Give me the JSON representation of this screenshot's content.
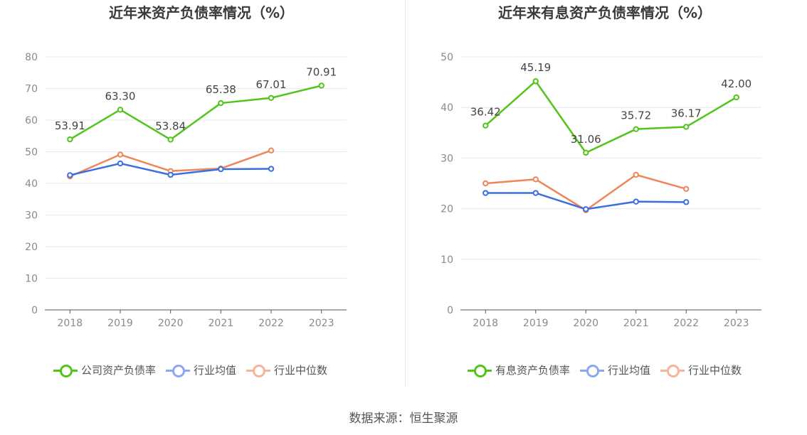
{
  "chart_data": [
    {
      "type": "line",
      "title": "近年来资产负债率情况（%）",
      "categories": [
        "2018",
        "2019",
        "2020",
        "2021",
        "2022",
        "2023"
      ],
      "ylim": [
        0,
        80
      ],
      "yticks": [
        0,
        10,
        20,
        30,
        40,
        50,
        60,
        70,
        80
      ],
      "grid": true,
      "legend_position": "bottom",
      "series": [
        {
          "name": "公司资产负债率",
          "color": "#52c41a",
          "values": [
            53.91,
            63.3,
            53.84,
            65.38,
            67.01,
            70.91
          ],
          "labels": [
            "53.91",
            "63.30",
            "53.84",
            "65.38",
            "67.01",
            "70.91"
          ]
        },
        {
          "name": "行业均值",
          "color": "#3b6fe0",
          "values": [
            42.6,
            46.3,
            42.7,
            44.5,
            44.6,
            null
          ]
        },
        {
          "name": "行业中位数",
          "color": "#f0855a",
          "values": [
            42.2,
            49.1,
            43.9,
            44.7,
            50.4,
            null
          ]
        }
      ]
    },
    {
      "type": "line",
      "title": "近年来有息资产负债率情况（%）",
      "categories": [
        "2018",
        "2019",
        "2020",
        "2021",
        "2022",
        "2023"
      ],
      "ylim": [
        0,
        50
      ],
      "yticks": [
        0,
        10,
        20,
        30,
        40,
        50
      ],
      "grid": true,
      "legend_position": "bottom",
      "series": [
        {
          "name": "有息资产负债率",
          "color": "#52c41a",
          "values": [
            36.42,
            45.19,
            31.06,
            35.72,
            36.17,
            42.0
          ],
          "labels": [
            "36.42",
            "45.19",
            "31.06",
            "35.72",
            "36.17",
            "42.00"
          ]
        },
        {
          "name": "行业均值",
          "color": "#3b6fe0",
          "values": [
            23.1,
            23.1,
            19.9,
            21.4,
            21.3,
            null
          ]
        },
        {
          "name": "行业中位数",
          "color": "#f0855a",
          "values": [
            25.0,
            25.8,
            19.7,
            26.7,
            23.9,
            null
          ]
        }
      ]
    }
  ],
  "legend_colors": {
    "company": "#52c41a",
    "avg": "#8aa8f0",
    "median": "#f7b49a"
  },
  "source": "数据来源：恒生聚源"
}
